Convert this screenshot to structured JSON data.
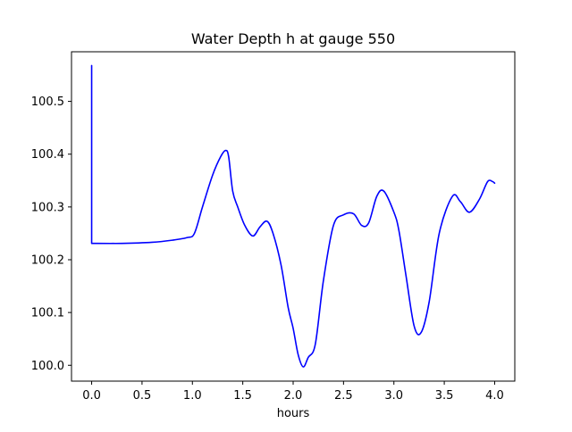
{
  "chart_data": {
    "type": "line",
    "title": "Water Depth h at gauge 550",
    "xlabel": "hours",
    "ylabel": "",
    "xlim": [
      -0.2,
      4.2
    ],
    "ylim": [
      99.97,
      100.594
    ],
    "xticks": [
      0.0,
      0.5,
      1.0,
      1.5,
      2.0,
      2.5,
      3.0,
      3.5,
      4.0
    ],
    "xtick_labels": [
      "0.0",
      "0.5",
      "1.0",
      "1.5",
      "2.0",
      "2.5",
      "3.0",
      "3.5",
      "4.0"
    ],
    "yticks": [
      100.0,
      100.1,
      100.2,
      100.3,
      100.4,
      100.5
    ],
    "ytick_labels": [
      "100.0",
      "100.1",
      "100.2",
      "100.3",
      "100.4",
      "100.5"
    ],
    "grid": false,
    "series": [
      {
        "color": "#0000ff",
        "x": [
          0.0,
          0.0,
          0.3,
          0.6,
          0.8,
          0.95,
          1.02,
          1.1,
          1.2,
          1.28,
          1.33,
          1.36,
          1.4,
          1.45,
          1.52,
          1.6,
          1.67,
          1.74,
          1.8,
          1.88,
          1.95,
          2.0,
          2.05,
          2.1,
          2.15,
          2.22,
          2.3,
          2.4,
          2.5,
          2.6,
          2.68,
          2.75,
          2.83,
          2.9,
          3.0,
          3.05,
          3.12,
          3.2,
          3.27,
          3.35,
          3.45,
          3.58,
          3.66,
          3.75,
          3.85,
          3.93,
          3.98,
          4.0
        ],
        "y": [
          100.568,
          100.231,
          100.231,
          100.233,
          100.237,
          100.242,
          100.25,
          100.3,
          100.36,
          100.395,
          100.407,
          100.395,
          100.33,
          100.3,
          100.265,
          100.245,
          100.262,
          100.273,
          100.25,
          100.19,
          100.11,
          100.07,
          100.02,
          99.997,
          100.015,
          100.04,
          100.16,
          100.265,
          100.285,
          100.287,
          100.265,
          100.27,
          100.32,
          100.33,
          100.29,
          100.255,
          100.17,
          100.075,
          100.062,
          100.12,
          100.25,
          100.32,
          100.31,
          100.29,
          100.315,
          100.348,
          100.348,
          100.345
        ]
      }
    ]
  }
}
